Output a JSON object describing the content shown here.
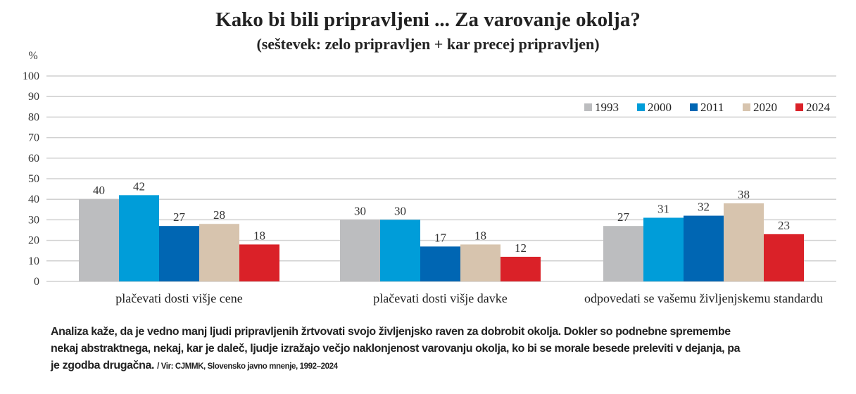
{
  "chart_data": {
    "type": "bar",
    "title": "Kako bi bili pripravljeni ... Za varovanje okolja?",
    "subtitle": "(seštevek: zelo pripravljen + kar precej pripravljen)",
    "ylabel": "%",
    "xlabel": "",
    "ylim": [
      0,
      100
    ],
    "yticks": [
      "0",
      "10",
      "20",
      "30",
      "40",
      "50",
      "60",
      "70",
      "80",
      "90",
      "100"
    ],
    "grid": true,
    "legend_position": "top-right",
    "categories": [
      "plačevati dosti višje cene",
      "plačevati dosti višje davke",
      "odpovedati se vašemu življenjskemu standardu"
    ],
    "series": [
      {
        "name": "1993",
        "color": "#bcbdbf",
        "values": [
          40,
          30,
          27
        ]
      },
      {
        "name": "2000",
        "color": "#009dd9",
        "values": [
          42,
          30,
          31
        ]
      },
      {
        "name": "2011",
        "color": "#0066b3",
        "values": [
          27,
          17,
          32
        ]
      },
      {
        "name": "2020",
        "color": "#d7c4ae",
        "values": [
          28,
          18,
          38
        ]
      },
      {
        "name": "2024",
        "color": "#da2128",
        "values": [
          18,
          12,
          23
        ]
      }
    ]
  },
  "note": {
    "text": "Analiza kaže, da je vedno manj ljudi pripravljenih žrtvovati svojo življenjsko raven za dobrobit okolja. Dokler so podnebne spremembe nekaj abstraktnega, nekaj, kar je daleč, ljudje izražajo večjo naklonjenost varovanju okolja, ko bi se morale besede preleviti v dejanja, pa je zgodba drugačna.",
    "source": "/ Vir: CJMMK, Slovensko javno mnenje, 1992–2024"
  }
}
